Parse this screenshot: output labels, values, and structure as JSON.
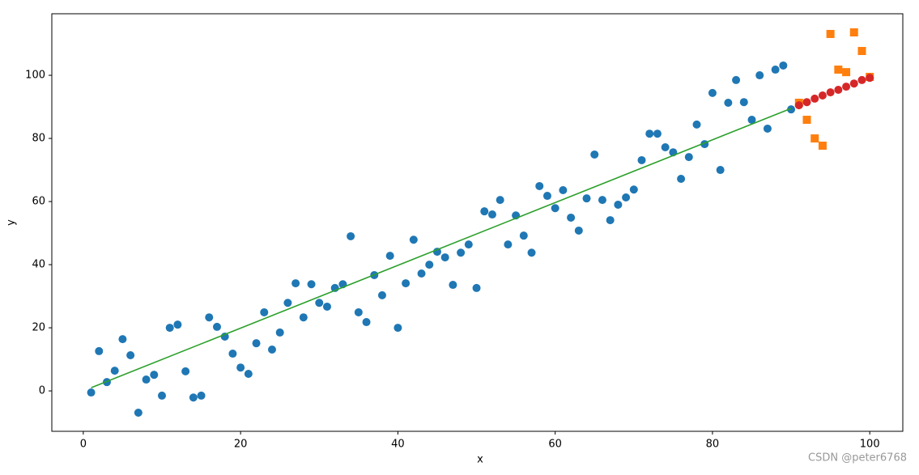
{
  "chart_data": {
    "type": "scatter",
    "xlabel": "x",
    "ylabel": "y",
    "xlim": [
      -4,
      104.2
    ],
    "ylim": [
      -12.8,
      119.5
    ],
    "xticks": [
      0,
      20,
      40,
      60,
      80,
      100
    ],
    "yticks": [
      0,
      20,
      40,
      60,
      80,
      100
    ],
    "grid": false,
    "watermark": "CSDN @peter6768",
    "series": [
      {
        "kind": "scatter",
        "marker": "circle",
        "color": "#1f77b4",
        "x": [
          1,
          2,
          3,
          4,
          5,
          6,
          7,
          8,
          9,
          10,
          11,
          12,
          13,
          14,
          15,
          16,
          17,
          18,
          19,
          20,
          21,
          22,
          23,
          24,
          25,
          26,
          27,
          28,
          29,
          30,
          31,
          32,
          33,
          34,
          35,
          36,
          37,
          38,
          39,
          40,
          41,
          42,
          43,
          44,
          45,
          46,
          47,
          48,
          49,
          50,
          51,
          52,
          53,
          54,
          55,
          56,
          57,
          58,
          59,
          60,
          61,
          62,
          63,
          64,
          65,
          66,
          67,
          68,
          69,
          70,
          71,
          72,
          73,
          74,
          75,
          76,
          77,
          78,
          79,
          80,
          81,
          82,
          83,
          84,
          85,
          86,
          87,
          88,
          89,
          90
        ],
        "values": [
          -0.5,
          12.6,
          2.8,
          6.4,
          16.4,
          11.3,
          -6.9,
          3.6,
          5.1,
          -1.5,
          20.0,
          21.0,
          6.2,
          -2.1,
          -1.5,
          23.3,
          20.3,
          17.2,
          11.8,
          7.4,
          5.4,
          15.1,
          24.9,
          13.1,
          18.5,
          27.9,
          34.1,
          23.3,
          33.8,
          27.9,
          26.7,
          32.6,
          33.8,
          49.0,
          24.9,
          21.8,
          36.7,
          30.3,
          42.8,
          20.0,
          34.1,
          47.9,
          37.2,
          40.0,
          44.1,
          42.3,
          33.6,
          43.8,
          46.4,
          32.6,
          56.9,
          55.9,
          60.5,
          46.4,
          55.6,
          49.2,
          43.8,
          64.9,
          61.8,
          57.9,
          63.6,
          54.9,
          50.8,
          61.0,
          74.9,
          60.5,
          54.1,
          59.0,
          61.3,
          63.8,
          73.1,
          81.5,
          81.5,
          77.2,
          75.6,
          67.2,
          74.1,
          84.4,
          78.2,
          94.4,
          70.0,
          91.3,
          98.5,
          91.5,
          85.9,
          100.0,
          83.1,
          101.8,
          103.1,
          89.2
        ]
      },
      {
        "kind": "line",
        "color": "#2ca02c",
        "x": [
          1,
          90
        ],
        "values": [
          1.0,
          89.5
        ]
      },
      {
        "kind": "scatter",
        "marker": "square",
        "color": "#ff7f0e",
        "x": [
          91,
          92,
          93,
          94,
          95,
          96,
          97,
          98,
          99,
          100
        ],
        "values": [
          91.3,
          85.9,
          80.0,
          77.7,
          113.1,
          101.8,
          101.0,
          113.6,
          107.7,
          99.5
        ]
      },
      {
        "kind": "scatter",
        "marker": "circle",
        "color": "#d62728",
        "x": [
          91,
          92,
          93,
          94,
          95,
          96,
          97,
          98,
          99,
          100
        ],
        "values": [
          90.5,
          91.5,
          92.6,
          93.6,
          94.6,
          95.4,
          96.4,
          97.4,
          98.5,
          99.2
        ]
      }
    ]
  }
}
